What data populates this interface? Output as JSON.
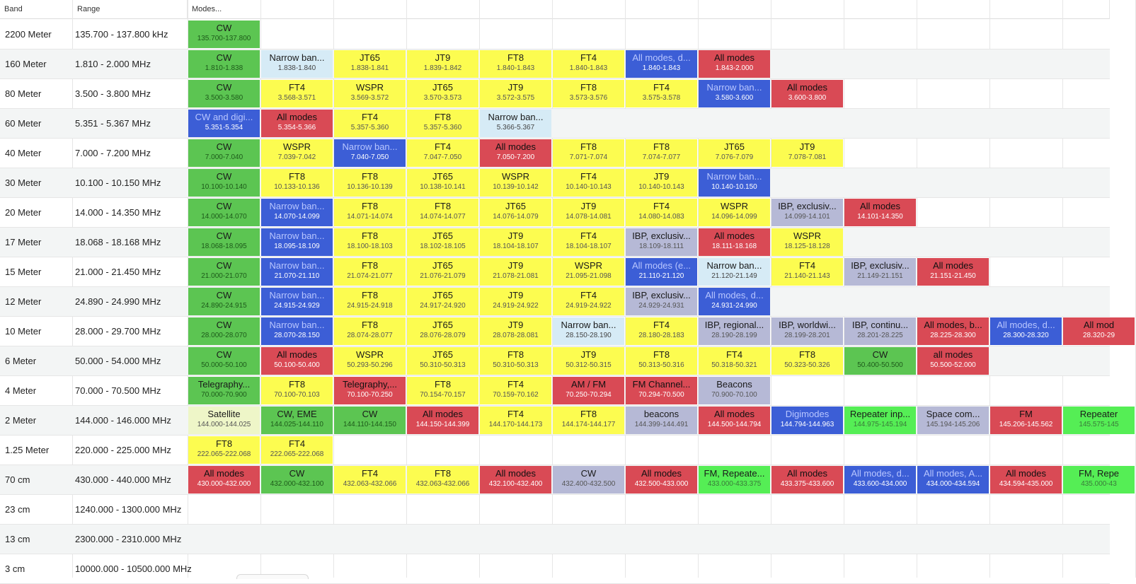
{
  "headers": {
    "band": "Band",
    "range": "Range",
    "modes": "Modes..."
  },
  "rows": [
    {
      "band": "2200 Meter",
      "range": "135.700 - 137.800 kHz",
      "cells": [
        {
          "mode": "CW",
          "freq": "135.700-137.800",
          "type": "cw"
        }
      ]
    },
    {
      "band": "160 Meter",
      "range": "1.810 - 2.000 MHz",
      "cells": [
        {
          "mode": "CW",
          "freq": "1.810-1.838",
          "type": "cw"
        },
        {
          "mode": "Narrow ban...",
          "freq": "1.838-1.840",
          "type": "lblue"
        },
        {
          "mode": "JT65",
          "freq": "1.838-1.841",
          "type": "digi"
        },
        {
          "mode": "JT9",
          "freq": "1.839-1.842",
          "type": "digi"
        },
        {
          "mode": "FT8",
          "freq": "1.840-1.843",
          "type": "digi"
        },
        {
          "mode": "FT4",
          "freq": "1.840-1.843",
          "type": "digi"
        },
        {
          "mode": "All modes, d...",
          "freq": "1.840-1.843",
          "type": "blue"
        },
        {
          "mode": "All modes",
          "freq": "1.843-2.000",
          "type": "all"
        }
      ]
    },
    {
      "band": "80 Meter",
      "range": "3.500 - 3.800 MHz",
      "cells": [
        {
          "mode": "CW",
          "freq": "3.500-3.580",
          "type": "cw"
        },
        {
          "mode": "FT4",
          "freq": "3.568-3.571",
          "type": "digi"
        },
        {
          "mode": "WSPR",
          "freq": "3.569-3.572",
          "type": "digi"
        },
        {
          "mode": "JT65",
          "freq": "3.570-3.573",
          "type": "digi"
        },
        {
          "mode": "JT9",
          "freq": "3.572-3.575",
          "type": "digi"
        },
        {
          "mode": "FT8",
          "freq": "3.573-3.576",
          "type": "digi"
        },
        {
          "mode": "FT4",
          "freq": "3.575-3.578",
          "type": "digi"
        },
        {
          "mode": "Narrow ban...",
          "freq": "3.580-3.600",
          "type": "blue"
        },
        {
          "mode": "All modes",
          "freq": "3.600-3.800",
          "type": "all"
        }
      ]
    },
    {
      "band": "60 Meter",
      "range": "5.351 - 5.367 MHz",
      "cells": [
        {
          "mode": "CW and digi...",
          "freq": "5.351-5.354",
          "type": "blue"
        },
        {
          "mode": "All modes",
          "freq": "5.354-5.366",
          "type": "all"
        },
        {
          "mode": "FT4",
          "freq": "5.357-5.360",
          "type": "digi"
        },
        {
          "mode": "FT8",
          "freq": "5.357-5.360",
          "type": "digi"
        },
        {
          "mode": "Narrow ban...",
          "freq": "5.366-5.367",
          "type": "lblue"
        }
      ]
    },
    {
      "band": "40 Meter",
      "range": "7.000 - 7.200 MHz",
      "cells": [
        {
          "mode": "CW",
          "freq": "7.000-7.040",
          "type": "cw"
        },
        {
          "mode": "WSPR",
          "freq": "7.039-7.042",
          "type": "digi"
        },
        {
          "mode": "Narrow ban...",
          "freq": "7.040-7.050",
          "type": "blue"
        },
        {
          "mode": "FT4",
          "freq": "7.047-7.050",
          "type": "digi"
        },
        {
          "mode": "All modes",
          "freq": "7.050-7.200",
          "type": "all"
        },
        {
          "mode": "FT8",
          "freq": "7.071-7.074",
          "type": "digi"
        },
        {
          "mode": "FT8",
          "freq": "7.074-7.077",
          "type": "digi"
        },
        {
          "mode": "JT65",
          "freq": "7.076-7.079",
          "type": "digi"
        },
        {
          "mode": "JT9",
          "freq": "7.078-7.081",
          "type": "digi"
        }
      ]
    },
    {
      "band": "30 Meter",
      "range": "10.100 - 10.150 MHz",
      "cells": [
        {
          "mode": "CW",
          "freq": "10.100-10.140",
          "type": "cw"
        },
        {
          "mode": "FT8",
          "freq": "10.133-10.136",
          "type": "digi"
        },
        {
          "mode": "FT8",
          "freq": "10.136-10.139",
          "type": "digi"
        },
        {
          "mode": "JT65",
          "freq": "10.138-10.141",
          "type": "digi"
        },
        {
          "mode": "WSPR",
          "freq": "10.139-10.142",
          "type": "digi"
        },
        {
          "mode": "FT4",
          "freq": "10.140-10.143",
          "type": "digi"
        },
        {
          "mode": "JT9",
          "freq": "10.140-10.143",
          "type": "digi"
        },
        {
          "mode": "Narrow ban...",
          "freq": "10.140-10.150",
          "type": "blue"
        }
      ]
    },
    {
      "band": "20 Meter",
      "range": "14.000 - 14.350 MHz",
      "cells": [
        {
          "mode": "CW",
          "freq": "14.000-14.070",
          "type": "cw"
        },
        {
          "mode": "Narrow ban...",
          "freq": "14.070-14.099",
          "type": "blue"
        },
        {
          "mode": "FT8",
          "freq": "14.071-14.074",
          "type": "digi"
        },
        {
          "mode": "FT8",
          "freq": "14.074-14.077",
          "type": "digi"
        },
        {
          "mode": "JT65",
          "freq": "14.076-14.079",
          "type": "digi"
        },
        {
          "mode": "JT9",
          "freq": "14.078-14.081",
          "type": "digi"
        },
        {
          "mode": "FT4",
          "freq": "14.080-14.083",
          "type": "digi"
        },
        {
          "mode": "WSPR",
          "freq": "14.096-14.099",
          "type": "digi"
        },
        {
          "mode": "IBP, exclusiv...",
          "freq": "14.099-14.101",
          "type": "grey"
        },
        {
          "mode": "All modes",
          "freq": "14.101-14.350",
          "type": "all"
        }
      ]
    },
    {
      "band": "17 Meter",
      "range": "18.068 - 18.168 MHz",
      "cells": [
        {
          "mode": "CW",
          "freq": "18.068-18.095",
          "type": "cw"
        },
        {
          "mode": "Narrow ban...",
          "freq": "18.095-18.109",
          "type": "blue"
        },
        {
          "mode": "FT8",
          "freq": "18.100-18.103",
          "type": "digi"
        },
        {
          "mode": "JT65",
          "freq": "18.102-18.105",
          "type": "digi"
        },
        {
          "mode": "JT9",
          "freq": "18.104-18.107",
          "type": "digi"
        },
        {
          "mode": "FT4",
          "freq": "18.104-18.107",
          "type": "digi"
        },
        {
          "mode": "IBP, exclusiv...",
          "freq": "18.109-18.111",
          "type": "grey"
        },
        {
          "mode": "All modes",
          "freq": "18.111-18.168",
          "type": "all"
        },
        {
          "mode": "WSPR",
          "freq": "18.125-18.128",
          "type": "digi"
        }
      ]
    },
    {
      "band": "15 Meter",
      "range": "21.000 - 21.450 MHz",
      "cells": [
        {
          "mode": "CW",
          "freq": "21.000-21.070",
          "type": "cw"
        },
        {
          "mode": "Narrow ban...",
          "freq": "21.070-21.110",
          "type": "blue"
        },
        {
          "mode": "FT8",
          "freq": "21.074-21.077",
          "type": "digi"
        },
        {
          "mode": "JT65",
          "freq": "21.076-21.079",
          "type": "digi"
        },
        {
          "mode": "JT9",
          "freq": "21.078-21.081",
          "type": "digi"
        },
        {
          "mode": "WSPR",
          "freq": "21.095-21.098",
          "type": "digi"
        },
        {
          "mode": "All modes (e...",
          "freq": "21.110-21.120",
          "type": "blue"
        },
        {
          "mode": "Narrow ban...",
          "freq": "21.120-21.149",
          "type": "lblue"
        },
        {
          "mode": "FT4",
          "freq": "21.140-21.143",
          "type": "digi"
        },
        {
          "mode": "IBP, exclusiv...",
          "freq": "21.149-21.151",
          "type": "grey"
        },
        {
          "mode": "All modes",
          "freq": "21.151-21.450",
          "type": "all"
        }
      ]
    },
    {
      "band": "12 Meter",
      "range": "24.890 - 24.990 MHz",
      "cells": [
        {
          "mode": "CW",
          "freq": "24.890-24.915",
          "type": "cw"
        },
        {
          "mode": "Narrow ban...",
          "freq": "24.915-24.929",
          "type": "blue"
        },
        {
          "mode": "FT8",
          "freq": "24.915-24.918",
          "type": "digi"
        },
        {
          "mode": "JT65",
          "freq": "24.917-24.920",
          "type": "digi"
        },
        {
          "mode": "JT9",
          "freq": "24.919-24.922",
          "type": "digi"
        },
        {
          "mode": "FT4",
          "freq": "24.919-24.922",
          "type": "digi"
        },
        {
          "mode": "IBP, exclusiv...",
          "freq": "24.929-24.931",
          "type": "grey"
        },
        {
          "mode": "All modes, d...",
          "freq": "24.931-24.990",
          "type": "blue"
        }
      ]
    },
    {
      "band": "10 Meter",
      "range": "28.000 - 29.700 MHz",
      "cells": [
        {
          "mode": "CW",
          "freq": "28.000-28.070",
          "type": "cw"
        },
        {
          "mode": "Narrow ban...",
          "freq": "28.070-28.150",
          "type": "blue"
        },
        {
          "mode": "FT8",
          "freq": "28.074-28.077",
          "type": "digi"
        },
        {
          "mode": "JT65",
          "freq": "28.076-28.079",
          "type": "digi"
        },
        {
          "mode": "JT9",
          "freq": "28.078-28.081",
          "type": "digi"
        },
        {
          "mode": "Narrow ban...",
          "freq": "28.150-28.190",
          "type": "lblue"
        },
        {
          "mode": "FT4",
          "freq": "28.180-28.183",
          "type": "digi"
        },
        {
          "mode": "IBP, regional...",
          "freq": "28.190-28.199",
          "type": "grey"
        },
        {
          "mode": "IBP, worldwi...",
          "freq": "28.199-28.201",
          "type": "grey"
        },
        {
          "mode": "IBP, continu...",
          "freq": "28.201-28.225",
          "type": "grey"
        },
        {
          "mode": "All modes, b...",
          "freq": "28.225-28.300",
          "type": "all"
        },
        {
          "mode": "All modes, d...",
          "freq": "28.300-28.320",
          "type": "blue"
        },
        {
          "mode": "All mod",
          "freq": "28.320-29",
          "type": "all"
        }
      ]
    },
    {
      "band": "6 Meter",
      "range": "50.000 - 54.000 MHz",
      "cells": [
        {
          "mode": "CW",
          "freq": "50.000-50.100",
          "type": "cw"
        },
        {
          "mode": "All modes",
          "freq": "50.100-50.400",
          "type": "all"
        },
        {
          "mode": "WSPR",
          "freq": "50.293-50.296",
          "type": "digi"
        },
        {
          "mode": "JT65",
          "freq": "50.310-50.313",
          "type": "digi"
        },
        {
          "mode": "FT8",
          "freq": "50.310-50.313",
          "type": "digi"
        },
        {
          "mode": "JT9",
          "freq": "50.312-50.315",
          "type": "digi"
        },
        {
          "mode": "FT8",
          "freq": "50.313-50.316",
          "type": "digi"
        },
        {
          "mode": "FT4",
          "freq": "50.318-50.321",
          "type": "digi"
        },
        {
          "mode": "FT8",
          "freq": "50.323-50.326",
          "type": "digi"
        },
        {
          "mode": "CW",
          "freq": "50.400-50.500",
          "type": "cw"
        },
        {
          "mode": "all modes",
          "freq": "50.500-52.000",
          "type": "all"
        }
      ]
    },
    {
      "band": "4 Meter",
      "range": "70.000 - 70.500 MHz",
      "cells": [
        {
          "mode": "Telegraphy...",
          "freq": "70.000-70.900",
          "type": "cw"
        },
        {
          "mode": "FT8",
          "freq": "70.100-70.103",
          "type": "digi"
        },
        {
          "mode": "Telegraphy,...",
          "freq": "70.100-70.250",
          "type": "all"
        },
        {
          "mode": "FT8",
          "freq": "70.154-70.157",
          "type": "digi"
        },
        {
          "mode": "FT4",
          "freq": "70.159-70.162",
          "type": "digi"
        },
        {
          "mode": "AM / FM",
          "freq": "70.250-70.294",
          "type": "all"
        },
        {
          "mode": "FM Channel...",
          "freq": "70.294-70.500",
          "type": "all"
        },
        {
          "mode": "Beacons",
          "freq": "70.900-70.100",
          "type": "grey"
        }
      ]
    },
    {
      "band": "2 Meter",
      "range": "144.000 - 146.000 MHz",
      "cells": [
        {
          "mode": "Satellite",
          "freq": "144.000-144.025",
          "type": "sat"
        },
        {
          "mode": "CW, EME",
          "freq": "144.025-144.110",
          "type": "cw"
        },
        {
          "mode": "CW",
          "freq": "144.110-144.150",
          "type": "cw"
        },
        {
          "mode": "All modes",
          "freq": "144.150-144.399",
          "type": "all"
        },
        {
          "mode": "FT4",
          "freq": "144.170-144.173",
          "type": "digi"
        },
        {
          "mode": "FT8",
          "freq": "144.174-144.177",
          "type": "digi"
        },
        {
          "mode": "beacons",
          "freq": "144.399-144.491",
          "type": "grey"
        },
        {
          "mode": "All modes",
          "freq": "144.500-144.794",
          "type": "all"
        },
        {
          "mode": "Digimodes",
          "freq": "144.794-144.963",
          "type": "blue"
        },
        {
          "mode": "Repeater inp...",
          "freq": "144.975-145.194",
          "type": "green"
        },
        {
          "mode": "Space com...",
          "freq": "145.194-145.206",
          "type": "grey"
        },
        {
          "mode": "FM",
          "freq": "145.206-145.562",
          "type": "all"
        },
        {
          "mode": "Repeater",
          "freq": "145.575-145",
          "type": "green"
        }
      ]
    },
    {
      "band": "1.25 Meter",
      "range": "220.000 - 225.000 MHz",
      "cells": [
        {
          "mode": "FT8",
          "freq": "222.065-222.068",
          "type": "digi"
        },
        {
          "mode": "FT4",
          "freq": "222.065-222.068",
          "type": "digi"
        }
      ]
    },
    {
      "band": "70 cm",
      "range": "430.000 - 440.000 MHz",
      "cells": [
        {
          "mode": "All modes",
          "freq": "430.000-432.000",
          "type": "all"
        },
        {
          "mode": "CW",
          "freq": "432.000-432.100",
          "type": "cw"
        },
        {
          "mode": "FT4",
          "freq": "432.063-432.066",
          "type": "digi"
        },
        {
          "mode": "FT8",
          "freq": "432.063-432.066",
          "type": "digi"
        },
        {
          "mode": "All modes",
          "freq": "432.100-432.400",
          "type": "all"
        },
        {
          "mode": "CW",
          "freq": "432.400-432.500",
          "type": "grey"
        },
        {
          "mode": "All modes",
          "freq": "432.500-433.000",
          "type": "all"
        },
        {
          "mode": "FM, Repeate...",
          "freq": "433.000-433.375",
          "type": "green"
        },
        {
          "mode": "All modes",
          "freq": "433.375-433.600",
          "type": "all"
        },
        {
          "mode": "All modes, d...",
          "freq": "433.600-434.000",
          "type": "blue"
        },
        {
          "mode": "All modes, A...",
          "freq": "434.000-434.594",
          "type": "blue"
        },
        {
          "mode": "All modes",
          "freq": "434.594-435.000",
          "type": "all"
        },
        {
          "mode": "FM, Repe",
          "freq": "435.000-43",
          "type": "green"
        }
      ]
    },
    {
      "band": "23 cm",
      "range": "1240.000 - 1300.000 MHz",
      "cells": []
    },
    {
      "band": "13 cm",
      "range": "2300.000 - 2310.000 MHz",
      "cells": []
    },
    {
      "band": "3 cm",
      "range": "10000.000 - 10500.000 MHz",
      "cells": []
    }
  ]
}
